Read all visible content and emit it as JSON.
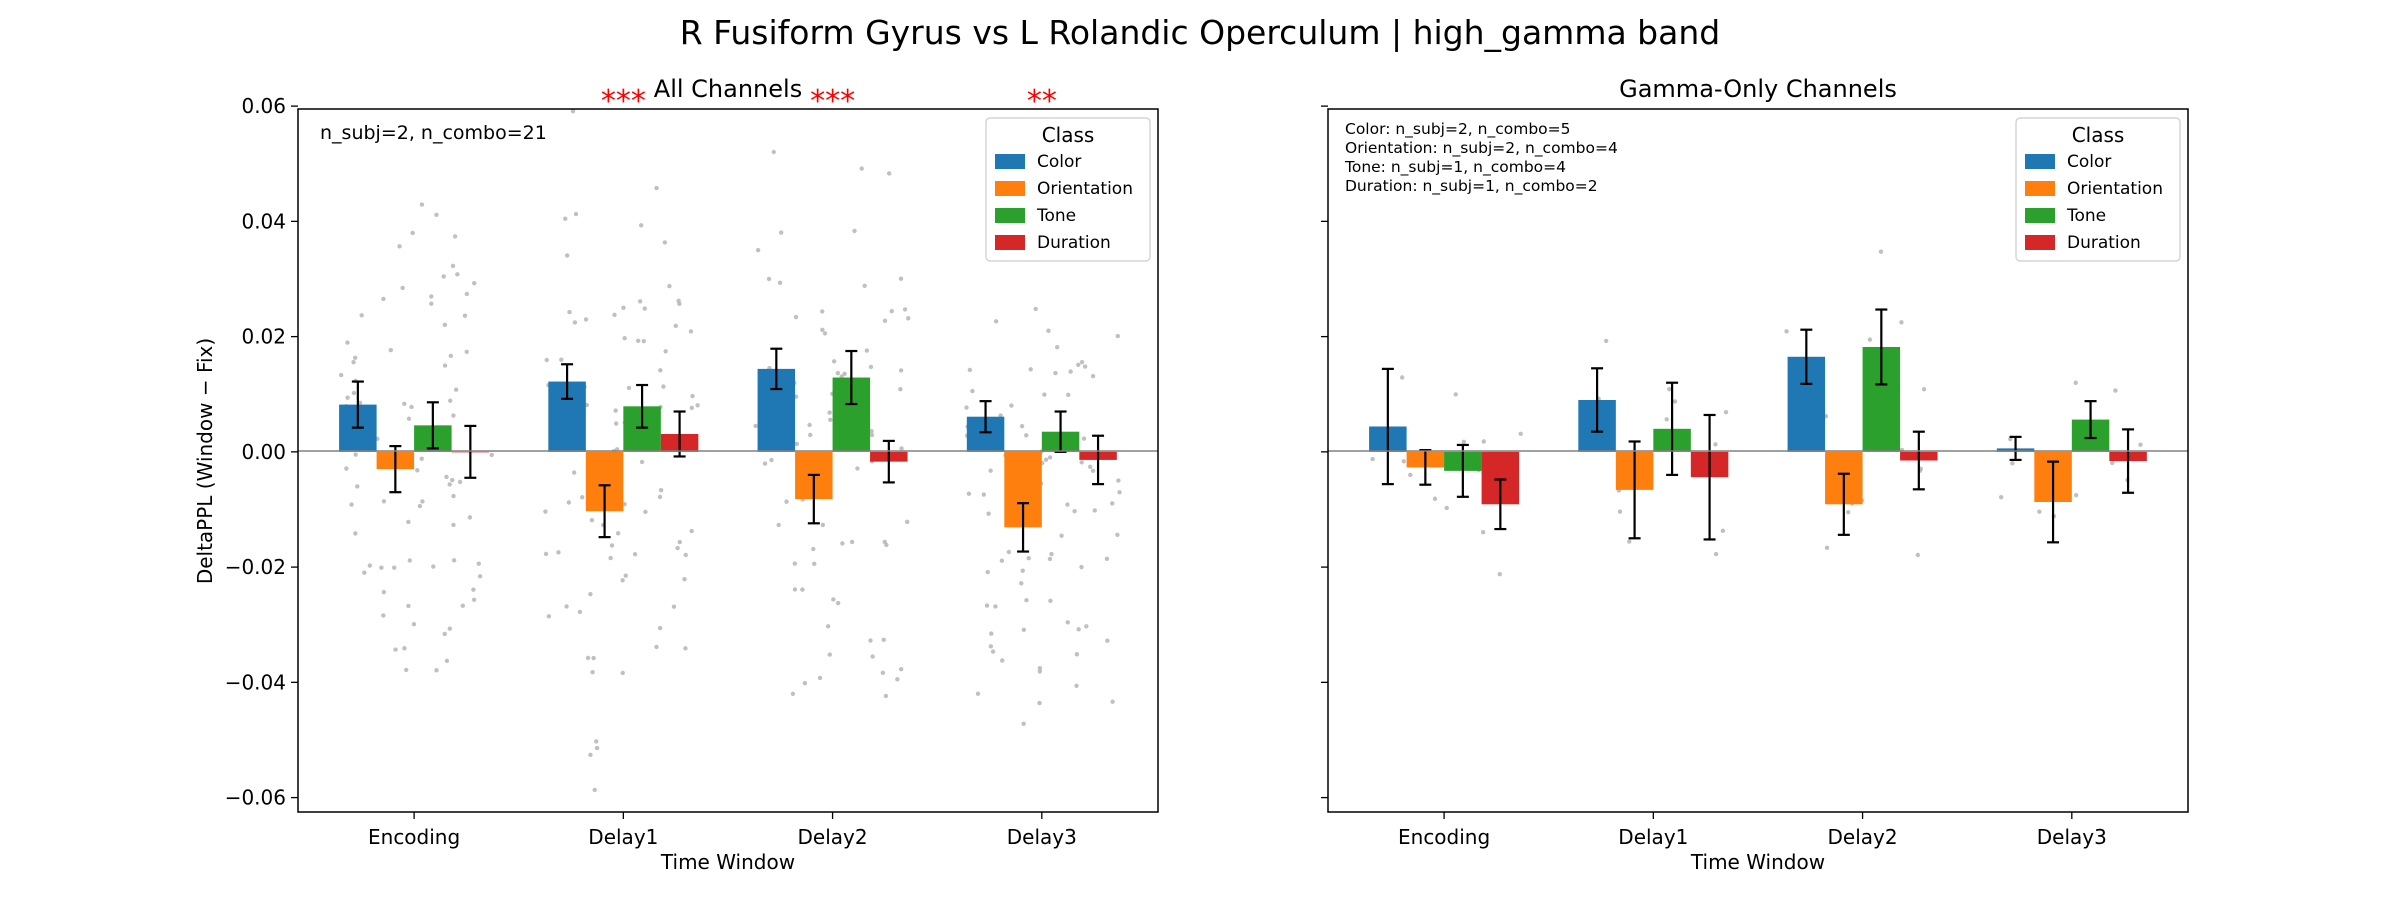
{
  "suptitle": "R Fusiform Gyrus vs L Rolandic Operculum  |  high_gamma band",
  "colors": {
    "Color": "#1f77b4",
    "Orientation": "#ff7f0e",
    "Tone": "#2ca02c",
    "Duration": "#d62728",
    "scatter": "#b0b0b0",
    "significance": "#ff0000"
  },
  "chart_data": [
    {
      "type": "bar",
      "title": "All Channels",
      "xlabel": "Time Window",
      "ylabel": "DeltaPPL (Window − Fix)",
      "ylim": [
        -0.0625,
        0.0595
      ],
      "yticks": [
        0.06,
        0.04,
        0.02,
        0.0,
        -0.02,
        -0.04,
        -0.06
      ],
      "ytick_labels": [
        "0.06",
        "0.04",
        "0.02",
        "0.00",
        "−0.02",
        "−0.04",
        "−0.06"
      ],
      "categories": [
        "Encoding",
        "Delay1",
        "Delay2",
        "Delay3"
      ],
      "legend_title": "Class",
      "legend_position": "top-right",
      "annotation": "n_subj=2, n_combo=21",
      "significance": [
        "",
        "***",
        "***",
        "**"
      ],
      "series": [
        {
          "name": "Color",
          "values": [
            0.0082,
            0.0122,
            0.0144,
            0.0061
          ],
          "errors": [
            0.004,
            0.003,
            0.0035,
            0.0027
          ]
        },
        {
          "name": "Orientation",
          "values": [
            -0.003,
            -0.0103,
            -0.0082,
            -0.0131
          ],
          "errors": [
            0.004,
            0.0045,
            0.0042,
            0.0042
          ]
        },
        {
          "name": "Tone",
          "values": [
            0.0046,
            0.0079,
            0.0129,
            0.0035
          ],
          "errors": [
            0.004,
            0.0037,
            0.0046,
            0.0035
          ]
        },
        {
          "name": "Duration",
          "values": [
            0.0,
            0.0031,
            -0.0017,
            -0.0014
          ],
          "errors": [
            0.0045,
            0.0039,
            0.0036,
            0.0042
          ]
        }
      ]
    },
    {
      "type": "bar",
      "title": "Gamma-Only Channels",
      "xlabel": "Time Window",
      "ylabel": "",
      "ylim": [
        -0.0625,
        0.0595
      ],
      "categories": [
        "Encoding",
        "Delay1",
        "Delay2",
        "Delay3"
      ],
      "legend_title": "Class",
      "legend_position": "top-right",
      "annotation_lines": [
        "Color: n_subj=2, n_combo=5",
        "Orientation: n_subj=2, n_combo=4",
        "Tone: n_subj=1, n_combo=4",
        "Duration: n_subj=1, n_combo=2"
      ],
      "series": [
        {
          "name": "Color",
          "values": [
            0.0044,
            0.009,
            0.0165,
            0.0006
          ],
          "errors": [
            0.01,
            0.0055,
            0.0047,
            0.002
          ]
        },
        {
          "name": "Orientation",
          "values": [
            -0.0027,
            -0.0066,
            -0.0091,
            -0.0087
          ],
          "errors": [
            0.003,
            0.0084,
            0.0053,
            0.007
          ]
        },
        {
          "name": "Tone",
          "values": [
            -0.0033,
            0.004,
            0.0182,
            0.0056
          ],
          "errors": [
            0.0045,
            0.008,
            0.0065,
            0.0032
          ]
        },
        {
          "name": "Duration",
          "values": [
            -0.0091,
            -0.0044,
            -0.0015,
            -0.0016
          ],
          "errors": [
            0.0043,
            0.0108,
            0.005,
            0.0055
          ]
        }
      ]
    }
  ]
}
